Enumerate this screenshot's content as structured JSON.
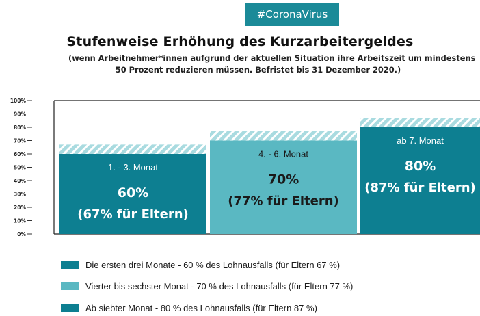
{
  "hashtag": "#CoronaVirus",
  "title": "Stufenweise Erhöhung des Kurzarbeitergeldes",
  "subtitle_line1": "(wenn Arbeitnehmer*innen aufgrund der aktuellen Situation ihre Arbeitszeit um mindestens",
  "subtitle_line2": "50 Prozent reduzieren müssen. Befristet bis 31 Dezember 2020.)",
  "colors": {
    "dark_teal": "#0d7f91",
    "light_teal": "#5ab8c2",
    "hatch": "#a9dbe0",
    "hatch_line": "#ffffff",
    "hashtag_bg": "#1b8a98"
  },
  "chart_data": {
    "type": "bar",
    "y_axis": {
      "min": 0,
      "max": 100,
      "unit": "%",
      "ticks": [
        "0%",
        "10%",
        "20%",
        "30%",
        "40%",
        "50%",
        "60%",
        "70%",
        "80%",
        "90%",
        "100%"
      ]
    },
    "grid": false,
    "bars": [
      {
        "label": "1. - 3. Monat",
        "value": 60,
        "parent_value": 67,
        "value_text": "60%",
        "parent_text": "(67% für Eltern)",
        "color_key": "dark_teal"
      },
      {
        "label": "4. - 6. Monat",
        "value": 70,
        "parent_value": 77,
        "value_text": "70%",
        "parent_text": "(77% für Eltern)",
        "color_key": "light_teal"
      },
      {
        "label": "ab 7. Monat",
        "value": 80,
        "parent_value": 87,
        "value_text": "80%",
        "parent_text": "(87% für Eltern)",
        "color_key": "dark_teal"
      }
    ]
  },
  "legend": [
    {
      "text": "Die ersten drei Monate - 60 % des Lohnausfalls (für Eltern 67 %)",
      "color_key": "dark_teal"
    },
    {
      "text": "Vierter bis sechster Monat - 70 % des Lohnausfalls (für Eltern 77 %)",
      "color_key": "light_teal"
    },
    {
      "text": "Ab siebter Monat - 80 % des Lohnausfalls (für Eltern 87 %)",
      "color_key": "dark_teal"
    }
  ]
}
